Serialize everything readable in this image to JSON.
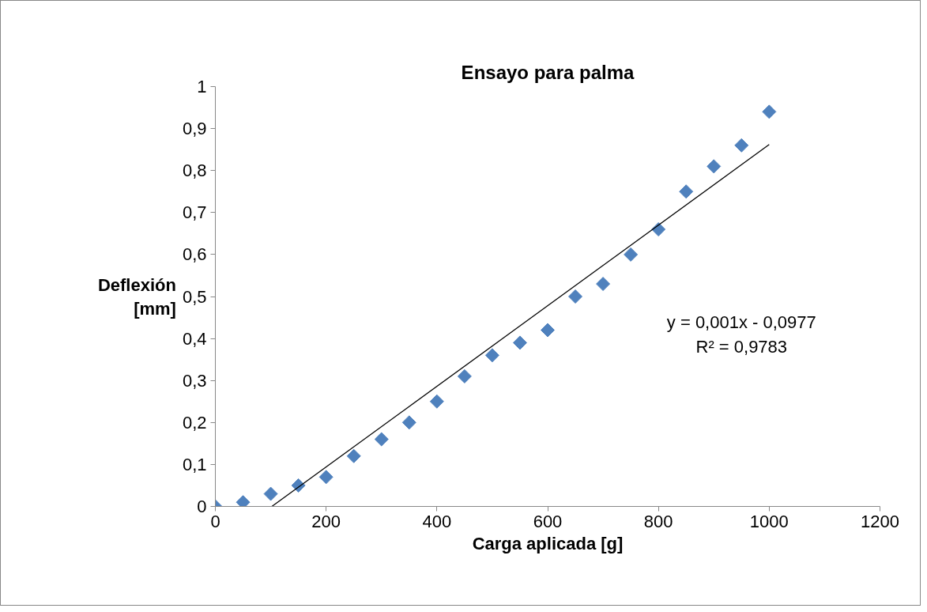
{
  "chart_data": {
    "type": "scatter",
    "title": "Ensayo para palma",
    "xlabel": "Carga aplicada [g]",
    "ylabel": "Deflexión [mm]",
    "annotations": [
      "y = 0,001x - 0,0977",
      "R² = 0,9783"
    ],
    "xlim": [
      0,
      1200
    ],
    "xticks": [
      0,
      200,
      400,
      600,
      800,
      1000,
      1200
    ],
    "ylim": [
      0,
      1
    ],
    "yticks": [
      0,
      {
        "value": 0.1,
        "label": "0,1"
      },
      {
        "value": 0.2,
        "label": "0,2"
      },
      {
        "value": 0.3,
        "label": "0,3"
      },
      {
        "value": 0.4,
        "label": "0,4"
      },
      {
        "value": 0.5,
        "label": "0,5"
      },
      {
        "value": 0.6,
        "label": "0,6"
      },
      {
        "value": 0.7,
        "label": "0,7"
      },
      {
        "value": 0.8,
        "label": "0,8"
      },
      {
        "value": 0.9,
        "label": "0,9"
      },
      1
    ],
    "grid": false,
    "series": [
      {
        "marker": "diamond",
        "color": "#4f81bd",
        "x": [
          0,
          50,
          100,
          150,
          200,
          250,
          300,
          350,
          400,
          450,
          500,
          550,
          600,
          650,
          700,
          750,
          800,
          850,
          900,
          950,
          1000
        ],
        "values": [
          0,
          0.01,
          0.03,
          0.05,
          0.07,
          0.12,
          0.16,
          0.2,
          0.25,
          0.31,
          0.36,
          0.39,
          0.42,
          0.5,
          0.53,
          0.6,
          0.66,
          0.75,
          0.81,
          0.86,
          0.94
        ]
      },
      {
        "type": "line",
        "color": "#000000",
        "x": [
          102,
          1000
        ],
        "values": [
          0,
          0.862
        ],
        "line_style": "solid"
      }
    ]
  }
}
